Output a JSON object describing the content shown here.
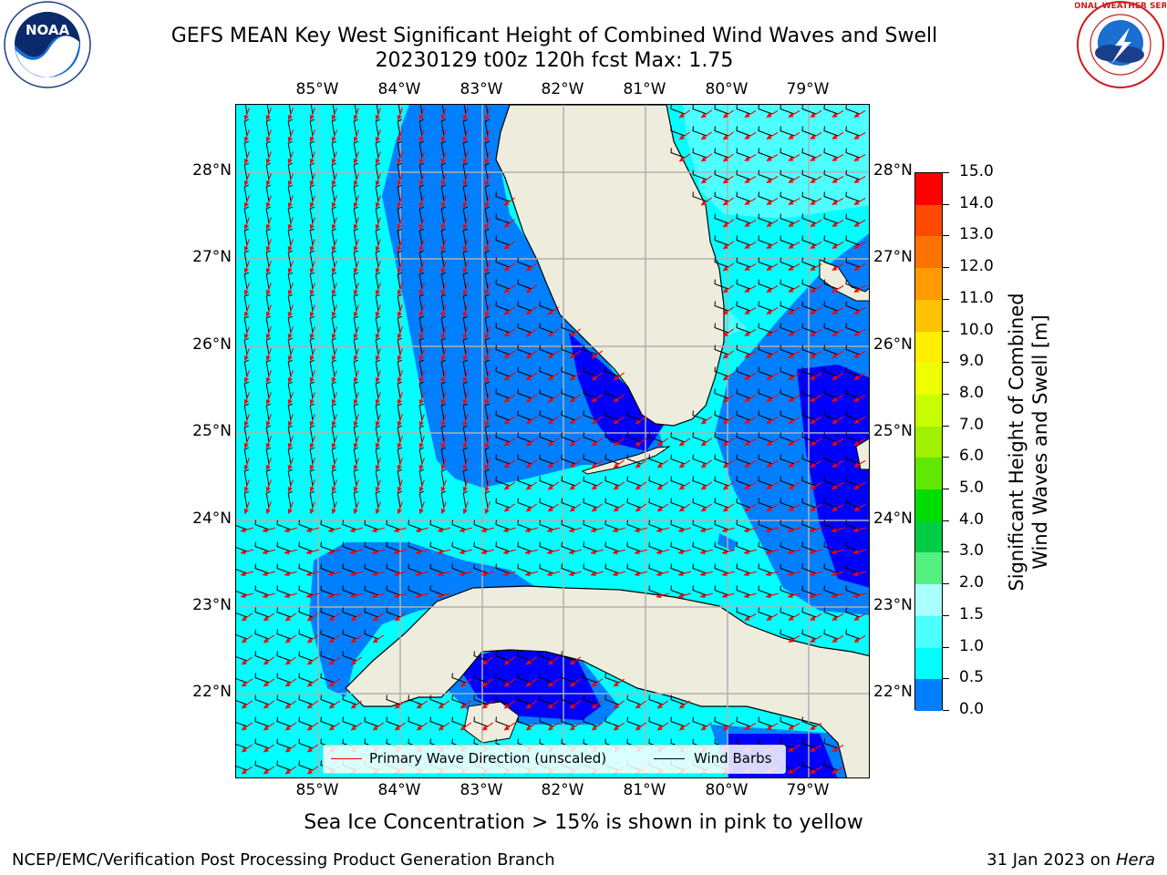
{
  "header": {
    "title_line1": "GEFS MEAN Key West Significant Height of Combined Wind Waves and Swell",
    "title_line2": "20230129 t00z 120h fcst   Max: 1.75"
  },
  "logos": {
    "left": {
      "text": "NOAA",
      "ring_text": "NATIONAL OCEANIC AND ATMOSPHERIC ADMINISTRATION · U.S. DEPARTMENT OF COMMERCE"
    },
    "right": {
      "text": "NATIONAL WEATHER SERVICE"
    }
  },
  "map": {
    "lon_labels": [
      "85°W",
      "84°W",
      "83°W",
      "82°W",
      "81°W",
      "80°W",
      "79°W"
    ],
    "lat_labels": [
      "28°N",
      "27°N",
      "26°N",
      "25°N",
      "24°N",
      "23°N",
      "22°N"
    ],
    "colors": {
      "land": "#eeecdc",
      "ocean_0_1": "#007ffe",
      "ocean_0_05": "#0000ff",
      "ocean_1_15": "#00ffff",
      "ocean_15_2": "#4dffff",
      "primary_wave_arrow": "#ff0000",
      "wind_barb": "#000000",
      "grid": "#b0b0b0"
    }
  },
  "colorbar": {
    "label_line1": "Significant Height of Combined",
    "label_line2": "Wind Waves and Swell [m]",
    "ticks": [
      "15.0",
      "14.0",
      "13.0",
      "12.0",
      "11.0",
      "10.0",
      "9.0",
      "8.0",
      "7.0",
      "6.0",
      "5.0",
      "4.0",
      "3.0",
      "2.0",
      "1.5",
      "1.0",
      "0.5",
      "0.0"
    ],
    "colors": [
      "#ff0000",
      "#ff2400",
      "#ff4800",
      "#ff7200",
      "#ff9a00",
      "#ffc200",
      "#ffee00",
      "#f0ff00",
      "#c8ff00",
      "#a0f000",
      "#60e800",
      "#00dd00",
      "#00cc44",
      "#54f080",
      "#aaffff",
      "#4dffff",
      "#00ffff",
      "#007ffe",
      "#0000ff"
    ]
  },
  "legend": {
    "wave_label": "Primary Wave Direction (unscaled)",
    "barb_label": "Wind Barbs"
  },
  "footnote": "Sea Ice Concentration > 15% is shown in pink to yellow",
  "footer": {
    "left": "NCEP/EMC/Verification Post Processing Product Generation Branch",
    "right_prefix": "31 Jan 2023 on ",
    "right_host": "Hera"
  }
}
